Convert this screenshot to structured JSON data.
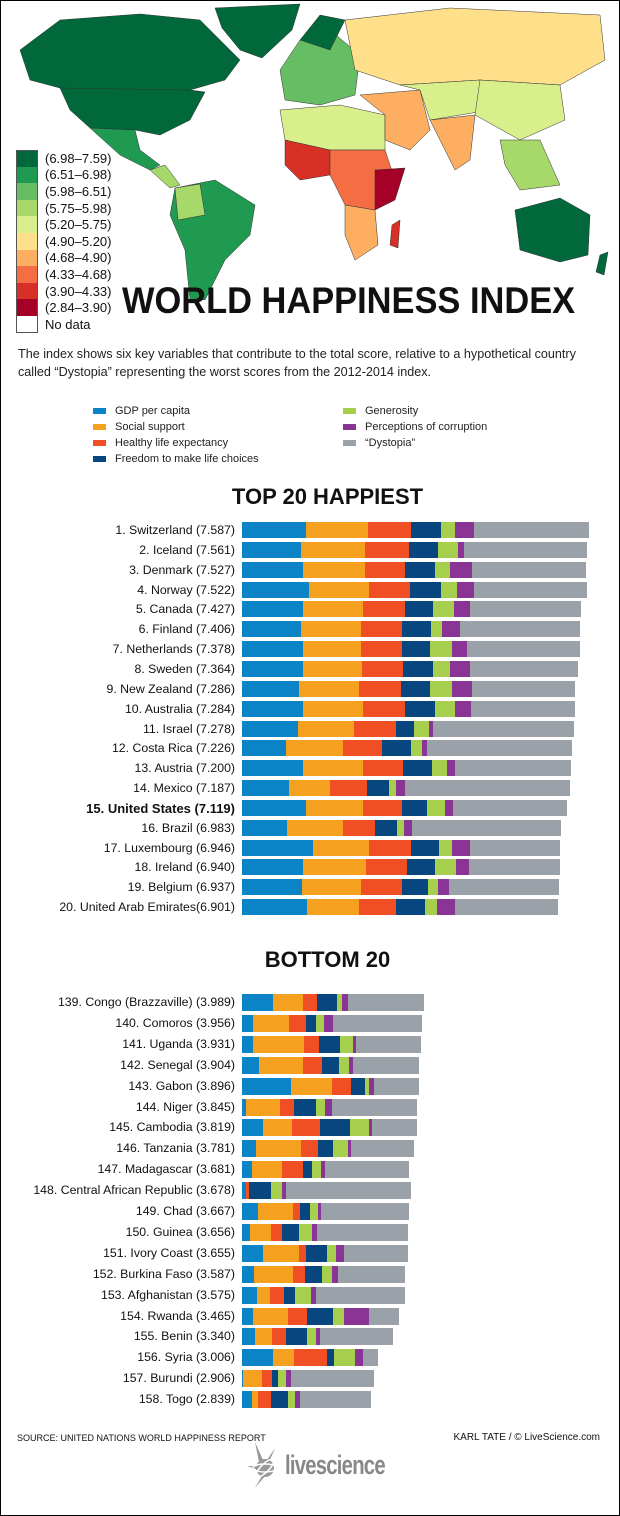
{
  "title": "WORLD HAPPINESS INDEX",
  "intro": "The index shows six key variables that contribute to the total score, relative to a hypothetical country called “Dystopia” representing the worst scores from the 2012-2014 index.",
  "map_legend": [
    {
      "label": "(6.98–7.59)",
      "color": "#00683a"
    },
    {
      "label": "(6.51–6.98)",
      "color": "#1f9a50"
    },
    {
      "label": "(5.98–6.51)",
      "color": "#67bd63"
    },
    {
      "label": "(5.75–5.98)",
      "color": "#a6d96a"
    },
    {
      "label": "(5.20–5.75)",
      "color": "#d9ef8b"
    },
    {
      "label": "(4.90–5.20)",
      "color": "#fee08b"
    },
    {
      "label": "(4.68–4.90)",
      "color": "#fdae61"
    },
    {
      "label": "(4.33–4.68)",
      "color": "#f46d43"
    },
    {
      "label": "(3.90–4.33)",
      "color": "#d73027"
    },
    {
      "label": "(2.84–3.90)",
      "color": "#a50026"
    },
    {
      "label": "No data",
      "color": "#ffffff"
    }
  ],
  "chart_data": [
    {
      "type": "bar",
      "orientation": "horizontal",
      "stacked": true,
      "title": "TOP 20 HAPPIEST",
      "series": [
        {
          "name": "GDP per capita",
          "color": "#0a84c6"
        },
        {
          "name": "Social support",
          "color": "#f5a11f"
        },
        {
          "name": "Healthy life expectancy",
          "color": "#ef4f22"
        },
        {
          "name": "Freedom to make life choices",
          "color": "#07467f"
        },
        {
          "name": "Generosity",
          "color": "#a5cf4c"
        },
        {
          "name": "Perceptions of corruption",
          "color": "#8a3596"
        },
        {
          "name": "“Dystopia”",
          "color": "#9aa1a8"
        }
      ],
      "rows": [
        {
          "label": "1. Switzerland (7.587)",
          "values": [
            1.4,
            1.35,
            0.94,
            0.67,
            0.3,
            0.42,
            2.52
          ]
        },
        {
          "label": "2. Iceland (7.561)",
          "values": [
            1.3,
            1.4,
            0.95,
            0.63,
            0.44,
            0.14,
            2.7
          ]
        },
        {
          "label": "3. Denmark (7.527)",
          "values": [
            1.33,
            1.36,
            0.88,
            0.65,
            0.34,
            0.48,
            2.49
          ]
        },
        {
          "label": "4. Norway (7.522)",
          "values": [
            1.46,
            1.33,
            0.89,
            0.67,
            0.35,
            0.37,
            2.47
          ]
        },
        {
          "label": "5. Canada (7.427)",
          "values": [
            1.33,
            1.32,
            0.91,
            0.63,
            0.46,
            0.33,
            2.45
          ]
        },
        {
          "label": "6. Finland (7.406)",
          "values": [
            1.29,
            1.32,
            0.89,
            0.64,
            0.23,
            0.41,
            2.62
          ]
        },
        {
          "label": "7. Netherlands (7.378)",
          "values": [
            1.33,
            1.28,
            0.89,
            0.62,
            0.48,
            0.32,
            2.47
          ]
        },
        {
          "label": "8. Sweden (7.364)",
          "values": [
            1.33,
            1.29,
            0.91,
            0.66,
            0.36,
            0.44,
            2.37
          ]
        },
        {
          "label": "9. New Zealand (7.286)",
          "values": [
            1.25,
            1.32,
            0.91,
            0.64,
            0.48,
            0.43,
            2.26
          ]
        },
        {
          "label": "10. Australia (7.284)",
          "values": [
            1.33,
            1.31,
            0.93,
            0.65,
            0.44,
            0.36,
            2.27
          ]
        },
        {
          "label": "11. Israel (7.278)",
          "values": [
            1.23,
            1.22,
            0.91,
            0.41,
            0.33,
            0.08,
            3.09
          ]
        },
        {
          "label": "12. Costa Rica (7.226)",
          "values": [
            0.96,
            1.24,
            0.86,
            0.63,
            0.26,
            0.1,
            3.18
          ]
        },
        {
          "label": "13. Austria (7.200)",
          "values": [
            1.34,
            1.3,
            0.89,
            0.62,
            0.33,
            0.19,
            2.54
          ]
        },
        {
          "label": "14. Mexico (7.187)",
          "values": [
            1.02,
            0.91,
            0.81,
            0.48,
            0.14,
            0.21,
            3.6
          ]
        },
        {
          "label": "15. United States (7.119)",
          "values": [
            1.39,
            1.25,
            0.86,
            0.55,
            0.4,
            0.16,
            2.51
          ],
          "highlight": true
        },
        {
          "label": "16. Brazil (6.983)",
          "values": [
            0.98,
            1.23,
            0.7,
            0.49,
            0.14,
            0.18,
            3.26
          ]
        },
        {
          "label": "17. Luxembourg (6.946)",
          "values": [
            1.56,
            1.22,
            0.92,
            0.62,
            0.28,
            0.38,
            1.97
          ]
        },
        {
          "label": "18. Ireland (6.940)",
          "values": [
            1.34,
            1.37,
            0.9,
            0.62,
            0.45,
            0.29,
            1.98
          ]
        },
        {
          "label": "19. Belgium (6.937)",
          "values": [
            1.31,
            1.29,
            0.9,
            0.58,
            0.22,
            0.23,
            2.41
          ]
        },
        {
          "label": "20. United Arab Emirates(6.901)",
          "values": [
            1.43,
            1.13,
            0.81,
            0.64,
            0.26,
            0.39,
            2.25
          ]
        }
      ]
    },
    {
      "type": "bar",
      "orientation": "horizontal",
      "stacked": true,
      "title": "BOTTOM 20",
      "rows": [
        {
          "label": "139. Congo (Brazzaville) (3.989)",
          "values": [
            0.68,
            0.66,
            0.31,
            0.42,
            0.12,
            0.12,
            1.67
          ]
        },
        {
          "label": "140. Comoros (3.956)",
          "values": [
            0.25,
            0.78,
            0.36,
            0.24,
            0.17,
            0.2,
            1.93
          ]
        },
        {
          "label": "141. Uganda (3.931)",
          "values": [
            0.23,
            1.12,
            0.33,
            0.46,
            0.29,
            0.07,
            1.41
          ]
        },
        {
          "label": "142. Senegal (3.904)",
          "values": [
            0.38,
            0.96,
            0.42,
            0.36,
            0.22,
            0.1,
            1.43
          ]
        },
        {
          "label": "143. Gabon (3.896)",
          "values": [
            1.07,
            0.89,
            0.43,
            0.31,
            0.08,
            0.11,
            0.98
          ]
        },
        {
          "label": "144. Niger (3.845)",
          "values": [
            0.08,
            0.76,
            0.3,
            0.47,
            0.2,
            0.15,
            1.86
          ]
        },
        {
          "label": "145. Cambodia (3.819)",
          "values": [
            0.47,
            0.63,
            0.6,
            0.66,
            0.41,
            0.07,
            0.98
          ]
        },
        {
          "label": "146. Tanzania (3.781)",
          "values": [
            0.3,
            0.99,
            0.38,
            0.32,
            0.33,
            0.07,
            1.37
          ]
        },
        {
          "label": "147. Madagascar (3.681)",
          "values": [
            0.22,
            0.66,
            0.46,
            0.19,
            0.2,
            0.09,
            1.84
          ]
        },
        {
          "label": "148. Central African Republic (3.678)",
          "values": [
            0.08,
            0.0,
            0.07,
            0.49,
            0.24,
            0.09,
            2.72
          ]
        },
        {
          "label": "149. Chad (3.667)",
          "values": [
            0.34,
            0.77,
            0.15,
            0.23,
            0.18,
            0.07,
            1.92
          ]
        },
        {
          "label": "150. Guinea (3.656)",
          "values": [
            0.18,
            0.46,
            0.24,
            0.37,
            0.28,
            0.12,
            1.98
          ]
        },
        {
          "label": "151. Ivory Coast (3.655)",
          "values": [
            0.47,
            0.77,
            0.15,
            0.46,
            0.21,
            0.18,
            1.4
          ]
        },
        {
          "label": "152. Burkina Faso (3.587)",
          "values": [
            0.26,
            0.85,
            0.26,
            0.39,
            0.22,
            0.12,
            1.46
          ]
        },
        {
          "label": "153. Afghanistan (3.575)",
          "values": [
            0.32,
            0.3,
            0.31,
            0.23,
            0.36,
            0.11,
            1.93
          ]
        },
        {
          "label": "154. Rwanda (3.465)",
          "values": [
            0.23,
            0.77,
            0.42,
            0.58,
            0.23,
            0.54,
            0.67
          ]
        },
        {
          "label": "155. Benin (3.340)",
          "values": [
            0.29,
            0.36,
            0.31,
            0.47,
            0.18,
            0.09,
            1.61
          ]
        },
        {
          "label": "156. Syria (3.006)",
          "values": [
            0.67,
            0.47,
            0.72,
            0.15,
            0.46,
            0.18,
            0.32
          ]
        },
        {
          "label": "157. Burundi (2.906)",
          "values": [
            0.02,
            0.42,
            0.22,
            0.12,
            0.19,
            0.11,
            1.81
          ]
        },
        {
          "label": "158. Togo (2.839)",
          "values": [
            0.21,
            0.15,
            0.28,
            0.36,
            0.17,
            0.11,
            1.55
          ]
        }
      ]
    }
  ],
  "footer": {
    "source": "SOURCE: UNITED NATIONS WORLD HAPPINESS REPORT",
    "credit": "KARL TATE / © LiveScience.com",
    "logo_text": "livescience"
  }
}
